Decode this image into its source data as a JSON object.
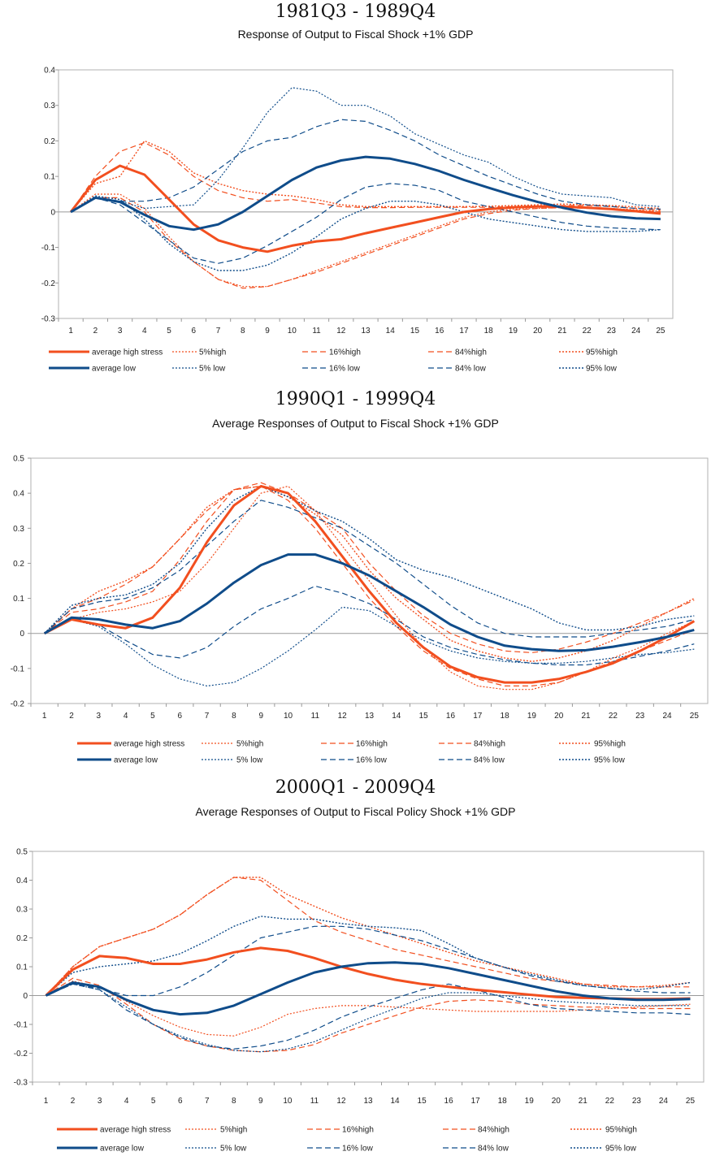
{
  "colors": {
    "high": "#f24f1f",
    "low": "#0f4c8a"
  },
  "legend_labels": [
    "average high stress",
    "5%high",
    "16%high",
    "84%high",
    "95%high",
    "average low",
    "5% low",
    "16% low",
    "84% low",
    "95% low"
  ],
  "chart_data": [
    {
      "type": "line",
      "title": "1981Q3 - 1989Q4",
      "subtitle": "Response of Output to Fiscal Shock +1% GDP",
      "x": [
        1,
        2,
        3,
        4,
        5,
        6,
        7,
        8,
        9,
        10,
        11,
        12,
        13,
        14,
        15,
        16,
        17,
        18,
        19,
        20,
        21,
        22,
        23,
        24,
        25
      ],
      "ylim": [
        -0.3,
        0.4
      ],
      "yticks": [
        "-0.3",
        "-0.2",
        "-0.1",
        "0",
        "0.1",
        "0.2",
        "0.3",
        "0.4"
      ],
      "legend_position": "bottom",
      "series": [
        {
          "name": "average high stress",
          "values": [
            0,
            0.09,
            0.13,
            0.105,
            0.035,
            -0.035,
            -0.08,
            -0.1,
            -0.112,
            -0.095,
            -0.083,
            -0.077,
            -0.06,
            -0.045,
            -0.03,
            -0.015,
            0,
            0.008,
            0.013,
            0.015,
            0.015,
            0.012,
            0.008,
            0.002,
            -0.005
          ]
        },
        {
          "name": "5%high",
          "values": [
            0,
            0.05,
            0.05,
            0.01,
            -0.07,
            -0.14,
            -0.19,
            -0.21,
            -0.21,
            -0.19,
            -0.165,
            -0.14,
            -0.115,
            -0.09,
            -0.065,
            -0.04,
            -0.015,
            0,
            0.008,
            0.01,
            0.012,
            0.012,
            0.01,
            0.006,
            0.002
          ]
        },
        {
          "name": "16%high",
          "values": [
            0,
            0.04,
            0.04,
            0,
            -0.08,
            -0.14,
            -0.19,
            -0.215,
            -0.21,
            -0.19,
            -0.17,
            -0.145,
            -0.12,
            -0.095,
            -0.07,
            -0.045,
            -0.02,
            -0.005,
            0.005,
            0.01,
            0.012,
            0.01,
            0.008,
            0.004,
            0
          ]
        },
        {
          "name": "84%high",
          "values": [
            0,
            0.1,
            0.17,
            0.195,
            0.16,
            0.1,
            0.06,
            0.04,
            0.03,
            0.035,
            0.025,
            0.015,
            0.012,
            0.012,
            0.013,
            0.013,
            0.013,
            0.013,
            0.015,
            0.017,
            0.018,
            0.018,
            0.015,
            0.01,
            0.005
          ]
        },
        {
          "name": "95%high",
          "values": [
            0,
            0.08,
            0.1,
            0.2,
            0.17,
            0.11,
            0.08,
            0.06,
            0.05,
            0.045,
            0.035,
            0.02,
            0.015,
            0.015,
            0.015,
            0.015,
            0.015,
            0.016,
            0.018,
            0.02,
            0.022,
            0.02,
            0.018,
            0.014,
            0.01
          ]
        },
        {
          "name": "average low",
          "values": [
            0,
            0.04,
            0.028,
            -0.008,
            -0.04,
            -0.05,
            -0.035,
            0,
            0.045,
            0.09,
            0.125,
            0.145,
            0.155,
            0.15,
            0.135,
            0.115,
            0.09,
            0.068,
            0.047,
            0.028,
            0.012,
            -0.002,
            -0.012,
            -0.018,
            -0.02
          ]
        },
        {
          "name": "5% low",
          "values": [
            0,
            0.04,
            0.03,
            0.01,
            0.015,
            0.02,
            0.09,
            0.18,
            0.28,
            0.35,
            0.34,
            0.3,
            0.3,
            0.27,
            0.22,
            0.19,
            0.16,
            0.14,
            0.1,
            0.07,
            0.05,
            0.045,
            0.04,
            0.02,
            0.015
          ]
        },
        {
          "name": "16% low",
          "values": [
            0,
            0.04,
            0.02,
            -0.03,
            -0.08,
            -0.13,
            -0.145,
            -0.13,
            -0.095,
            -0.055,
            -0.015,
            0.035,
            0.07,
            0.08,
            0.075,
            0.06,
            0.03,
            0.015,
            0,
            -0.015,
            -0.03,
            -0.04,
            -0.045,
            -0.048,
            -0.05
          ]
        },
        {
          "name": "84% low",
          "values": [
            0,
            0.04,
            0.03,
            0.03,
            0.04,
            0.07,
            0.12,
            0.17,
            0.2,
            0.21,
            0.24,
            0.26,
            0.255,
            0.23,
            0.2,
            0.16,
            0.13,
            0.1,
            0.075,
            0.05,
            0.03,
            0.02,
            0.015,
            0.01,
            0.008
          ]
        },
        {
          "name": "95% low",
          "values": [
            0,
            0.045,
            0.035,
            -0.02,
            -0.09,
            -0.14,
            -0.165,
            -0.165,
            -0.15,
            -0.115,
            -0.07,
            -0.02,
            0.01,
            0.03,
            0.03,
            0.02,
            0,
            -0.02,
            -0.03,
            -0.04,
            -0.05,
            -0.055,
            -0.055,
            -0.055,
            -0.05
          ]
        }
      ]
    },
    {
      "type": "line",
      "title": "1990Q1 - 1999Q4",
      "subtitle": "Average Responses of Output to Fiscal Shock +1% GDP",
      "x": [
        1,
        2,
        3,
        4,
        5,
        6,
        7,
        8,
        9,
        10,
        11,
        12,
        13,
        14,
        15,
        16,
        17,
        18,
        19,
        20,
        21,
        22,
        23,
        24,
        25
      ],
      "ylim": [
        -0.2,
        0.5
      ],
      "yticks": [
        "-0.2",
        "-0.1",
        "0",
        "0.1",
        "0.2",
        "0.3",
        "0.4",
        "0.5"
      ],
      "legend_position": "bottom",
      "series": [
        {
          "name": "average high stress",
          "values": [
            0,
            0.04,
            0.025,
            0.015,
            0.045,
            0.13,
            0.26,
            0.365,
            0.42,
            0.4,
            0.32,
            0.22,
            0.12,
            0.03,
            -0.04,
            -0.095,
            -0.125,
            -0.14,
            -0.14,
            -0.13,
            -0.11,
            -0.085,
            -0.05,
            -0.01,
            0.035
          ]
        },
        {
          "name": "5%high",
          "values": [
            0,
            0.04,
            0.06,
            0.07,
            0.09,
            0.12,
            0.2,
            0.3,
            0.4,
            0.42,
            0.35,
            0.25,
            0.15,
            0.05,
            -0.04,
            -0.11,
            -0.15,
            -0.16,
            -0.16,
            -0.14,
            -0.11,
            -0.07,
            -0.04,
            0,
            0.035
          ]
        },
        {
          "name": "16%high",
          "values": [
            0,
            0.06,
            0.07,
            0.09,
            0.12,
            0.21,
            0.32,
            0.41,
            0.42,
            0.38,
            0.3,
            0.2,
            0.1,
            0.02,
            -0.05,
            -0.1,
            -0.13,
            -0.15,
            -0.15,
            -0.14,
            -0.11,
            -0.08,
            -0.05,
            -0.02,
            0.01
          ]
        },
        {
          "name": "84%high",
          "values": [
            0,
            0.07,
            0.1,
            0.14,
            0.19,
            0.27,
            0.35,
            0.41,
            0.43,
            0.4,
            0.35,
            0.3,
            0.2,
            0.12,
            0.05,
            0,
            -0.03,
            -0.05,
            -0.055,
            -0.045,
            -0.025,
            0,
            0.03,
            0.06,
            0.095
          ]
        },
        {
          "name": "95%high",
          "values": [
            0,
            0.07,
            0.12,
            0.15,
            0.19,
            0.27,
            0.36,
            0.41,
            0.42,
            0.39,
            0.34,
            0.28,
            0.18,
            0.1,
            0.04,
            -0.02,
            -0.05,
            -0.07,
            -0.08,
            -0.07,
            -0.05,
            -0.02,
            0.02,
            0.06,
            0.1
          ]
        },
        {
          "name": "average low",
          "values": [
            0,
            0.045,
            0.04,
            0.025,
            0.015,
            0.035,
            0.085,
            0.145,
            0.195,
            0.225,
            0.225,
            0.2,
            0.165,
            0.12,
            0.075,
            0.025,
            -0.01,
            -0.035,
            -0.045,
            -0.05,
            -0.048,
            -0.038,
            -0.025,
            -0.01,
            0.01
          ]
        },
        {
          "name": "5% low",
          "values": [
            0,
            0.04,
            0.02,
            -0.03,
            -0.09,
            -0.13,
            -0.15,
            -0.14,
            -0.1,
            -0.05,
            0.01,
            0.075,
            0.065,
            0.02,
            -0.02,
            -0.05,
            -0.07,
            -0.08,
            -0.085,
            -0.085,
            -0.08,
            -0.07,
            -0.06,
            -0.055,
            -0.045
          ]
        },
        {
          "name": "16% low",
          "values": [
            0,
            0.045,
            0.025,
            -0.02,
            -0.06,
            -0.07,
            -0.04,
            0.02,
            0.07,
            0.1,
            0.135,
            0.115,
            0.085,
            0.04,
            -0.01,
            -0.04,
            -0.06,
            -0.075,
            -0.085,
            -0.09,
            -0.09,
            -0.08,
            -0.065,
            -0.05,
            -0.03
          ]
        },
        {
          "name": "84% low",
          "values": [
            0,
            0.07,
            0.09,
            0.1,
            0.13,
            0.18,
            0.25,
            0.32,
            0.38,
            0.36,
            0.33,
            0.3,
            0.25,
            0.2,
            0.14,
            0.08,
            0.03,
            0,
            -0.01,
            -0.01,
            -0.01,
            0,
            0.01,
            0.02,
            0.04
          ]
        },
        {
          "name": "95% low",
          "values": [
            0,
            0.08,
            0.1,
            0.11,
            0.14,
            0.2,
            0.3,
            0.38,
            0.42,
            0.39,
            0.35,
            0.32,
            0.27,
            0.21,
            0.18,
            0.16,
            0.13,
            0.1,
            0.07,
            0.03,
            0.01,
            0.01,
            0.02,
            0.04,
            0.05
          ]
        }
      ]
    },
    {
      "type": "line",
      "title": "2000Q1 - 2009Q4",
      "subtitle": "Average Responses of Output to Fiscal Policy Shock +1% GDP",
      "x": [
        1,
        2,
        3,
        4,
        5,
        6,
        7,
        8,
        9,
        10,
        11,
        12,
        13,
        14,
        15,
        16,
        17,
        18,
        19,
        20,
        21,
        22,
        23,
        24,
        25
      ],
      "ylim": [
        -0.3,
        0.5
      ],
      "yticks": [
        "-0.3",
        "-0.2",
        "-0.1",
        "0",
        "0.1",
        "0.2",
        "0.3",
        "0.4",
        "0.5"
      ],
      "legend_position": "bottom",
      "series": [
        {
          "name": "average high stress",
          "values": [
            0,
            0.09,
            0.137,
            0.13,
            0.11,
            0.11,
            0.125,
            0.15,
            0.165,
            0.155,
            0.13,
            0.1,
            0.075,
            0.055,
            0.04,
            0.03,
            0.02,
            0.012,
            0.003,
            -0.005,
            -0.008,
            -0.01,
            -0.012,
            -0.012,
            -0.01
          ]
        },
        {
          "name": "5%high",
          "values": [
            0,
            0.05,
            0.03,
            -0.02,
            -0.07,
            -0.11,
            -0.135,
            -0.14,
            -0.11,
            -0.065,
            -0.045,
            -0.035,
            -0.035,
            -0.04,
            -0.045,
            -0.05,
            -0.055,
            -0.055,
            -0.055,
            -0.055,
            -0.05,
            -0.045,
            -0.04,
            -0.035,
            -0.03
          ]
        },
        {
          "name": "16%high",
          "values": [
            0,
            0.06,
            0.035,
            -0.03,
            -0.1,
            -0.15,
            -0.175,
            -0.19,
            -0.195,
            -0.19,
            -0.17,
            -0.13,
            -0.1,
            -0.07,
            -0.04,
            -0.02,
            -0.015,
            -0.02,
            -0.03,
            -0.035,
            -0.04,
            -0.04,
            -0.045,
            -0.045,
            -0.045
          ]
        },
        {
          "name": "84%high",
          "values": [
            0,
            0.1,
            0.17,
            0.2,
            0.23,
            0.28,
            0.35,
            0.41,
            0.4,
            0.33,
            0.26,
            0.22,
            0.19,
            0.16,
            0.14,
            0.12,
            0.1,
            0.08,
            0.06,
            0.05,
            0.04,
            0.035,
            0.03,
            0.03,
            0.03
          ]
        },
        {
          "name": "95%high",
          "values": [
            0,
            0.1,
            0.17,
            0.2,
            0.23,
            0.28,
            0.35,
            0.41,
            0.41,
            0.35,
            0.31,
            0.27,
            0.24,
            0.21,
            0.18,
            0.15,
            0.12,
            0.1,
            0.08,
            0.06,
            0.04,
            0.03,
            0.03,
            0.035,
            0.045
          ]
        },
        {
          "name": "average low",
          "values": [
            0,
            0.045,
            0.03,
            -0.015,
            -0.05,
            -0.065,
            -0.06,
            -0.035,
            0.005,
            0.045,
            0.08,
            0.1,
            0.112,
            0.115,
            0.11,
            0.095,
            0.075,
            0.055,
            0.035,
            0.015,
            0,
            -0.01,
            -0.015,
            -0.015,
            -0.012
          ]
        },
        {
          "name": "5% low",
          "values": [
            0,
            0.04,
            0.02,
            -0.04,
            -0.1,
            -0.14,
            -0.17,
            -0.19,
            -0.195,
            -0.185,
            -0.16,
            -0.12,
            -0.08,
            -0.045,
            -0.01,
            0.01,
            0.01,
            0,
            -0.01,
            -0.02,
            -0.025,
            -0.03,
            -0.035,
            -0.035,
            -0.035
          ]
        },
        {
          "name": "16% low",
          "values": [
            0,
            0.04,
            0.025,
            0,
            0,
            0.03,
            0.08,
            0.14,
            0.2,
            0.22,
            0.24,
            0.24,
            0.23,
            0.21,
            0.19,
            0.16,
            0.13,
            0.1,
            0.07,
            0.05,
            0.035,
            0.025,
            0.015,
            0.01,
            0.01
          ]
        },
        {
          "name": "84% low",
          "values": [
            0,
            0.04,
            0.02,
            -0.05,
            -0.1,
            -0.145,
            -0.175,
            -0.185,
            -0.175,
            -0.155,
            -0.12,
            -0.075,
            -0.04,
            -0.01,
            0.02,
            0.04,
            0.02,
            -0.005,
            -0.03,
            -0.045,
            -0.05,
            -0.055,
            -0.06,
            -0.06,
            -0.065
          ]
        },
        {
          "name": "95% low",
          "values": [
            0,
            0.08,
            0.1,
            0.11,
            0.12,
            0.145,
            0.19,
            0.24,
            0.275,
            0.265,
            0.265,
            0.25,
            0.24,
            0.235,
            0.225,
            0.18,
            0.13,
            0.1,
            0.075,
            0.055,
            0.035,
            0.025,
            0.02,
            0.03,
            0.045
          ]
        }
      ]
    }
  ]
}
